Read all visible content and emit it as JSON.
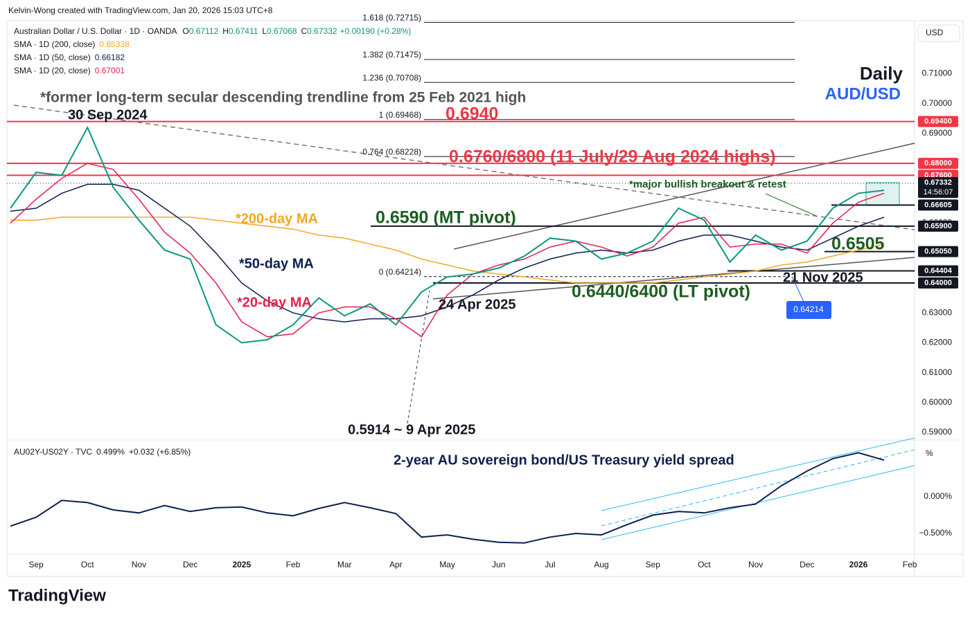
{
  "header": {
    "credit": "Kelvin-Wong created with TradingView.com, Jan 20, 2026 15:03 UTC+8",
    "currency": "USD",
    "brand": "TradingView",
    "ohlc": [
      {
        "key": "O",
        "value": "0.67112"
      },
      {
        "key": "H",
        "value": "0.67411"
      },
      {
        "key": "L",
        "value": "0.67068"
      },
      {
        "key": "C",
        "value": "0.67332"
      }
    ],
    "change": "+0.00190 (+0.28%)"
  },
  "chart_data": [
    {
      "type": "line",
      "title": "Daily",
      "subtitle": "AUD/USD",
      "categories": [
        null,
        "Sep",
        null,
        "Oct",
        null,
        "Nov",
        null,
        "Dec",
        null,
        "2025",
        null,
        "Feb",
        null,
        "Mar",
        null,
        "Apr",
        null,
        "May",
        null,
        "Jun",
        null,
        "Jul",
        null,
        "Aug",
        null,
        "Sep",
        null,
        "Oct",
        null,
        "Nov",
        null,
        "Dec",
        null,
        "2026",
        null,
        "Feb"
      ],
      "series": [
        {
          "name": "Australian Dollar / U.S. Dollar · 1D · OANDA",
          "color": "#089981",
          "values": [
            0.665,
            0.677,
            0.676,
            0.692,
            0.672,
            0.661,
            0.651,
            0.648,
            0.626,
            0.62,
            0.621,
            0.626,
            0.635,
            0.629,
            0.633,
            0.626,
            0.637,
            0.642,
            0.643,
            0.645,
            0.649,
            0.655,
            0.654,
            0.648,
            0.65,
            0.654,
            0.665,
            0.661,
            0.647,
            0.656,
            0.651,
            0.654,
            0.665,
            0.67,
            0.671,
            null
          ]
        },
        {
          "name": "SMA · 1D (200, close)",
          "legend_value": 0.65338,
          "color": "#f5a623",
          "values": [
            0.661,
            0.661,
            0.662,
            0.662,
            0.662,
            0.662,
            0.662,
            0.662,
            0.661,
            0.66,
            0.659,
            0.658,
            0.656,
            0.655,
            0.653,
            0.651,
            0.648,
            0.646,
            0.644,
            0.643,
            0.642,
            0.641,
            0.64,
            0.64,
            0.64,
            0.64,
            0.641,
            0.642,
            0.643,
            0.644,
            0.646,
            0.647,
            0.649,
            0.651,
            0.653,
            null
          ]
        },
        {
          "name": "SMA · 1D (50, close)",
          "legend_value": 0.66182,
          "color": "#0c1f4f",
          "values": [
            0.664,
            0.665,
            0.67,
            0.673,
            0.673,
            0.671,
            0.665,
            0.659,
            0.65,
            0.64,
            0.634,
            0.63,
            0.628,
            0.627,
            0.628,
            0.628,
            0.629,
            0.632,
            0.636,
            0.641,
            0.645,
            0.648,
            0.65,
            0.651,
            0.65,
            0.651,
            0.654,
            0.656,
            0.656,
            0.654,
            0.652,
            0.651,
            0.655,
            0.659,
            0.662,
            null
          ]
        },
        {
          "name": "SMA · 1D (20, close)",
          "legend_value": 0.67001,
          "color": "#e91e4c",
          "values": [
            0.66,
            0.668,
            0.675,
            0.68,
            0.678,
            0.668,
            0.657,
            0.65,
            0.64,
            0.627,
            0.622,
            0.623,
            0.63,
            0.632,
            0.632,
            0.628,
            0.622,
            0.636,
            0.643,
            0.646,
            0.648,
            0.652,
            0.654,
            0.652,
            0.649,
            0.652,
            0.66,
            0.662,
            0.652,
            0.653,
            0.653,
            0.65,
            0.66,
            0.667,
            0.67,
            null
          ]
        }
      ],
      "ylim": [
        0.5877,
        0.7277
      ],
      "yticks": [
        {
          "value": 0.59,
          "label": "0.59000"
        },
        {
          "value": 0.6,
          "label": "0.60000"
        },
        {
          "value": 0.61,
          "label": "0.61000"
        },
        {
          "value": 0.62,
          "label": "0.62000"
        },
        {
          "value": 0.63,
          "label": "0.63000"
        },
        {
          "value": 0.64,
          "label": "0.64000"
        },
        {
          "value": 0.65,
          "label": "0.65000"
        },
        {
          "value": 0.66,
          "label": "0.66000"
        },
        {
          "value": 0.67,
          "label": "0.67000"
        },
        {
          "value": 0.68,
          "label": "0.68000"
        },
        {
          "value": 0.69,
          "label": "0.69000"
        },
        {
          "value": 0.7,
          "label": "0.70000"
        },
        {
          "value": 0.71,
          "label": "0.71000"
        }
      ],
      "last": {
        "value": 0.67332,
        "label": "0.67332",
        "countdown": "14:56:07"
      },
      "levels": [
        {
          "value": 0.694,
          "label": "0.69400",
          "color": "#f23645"
        },
        {
          "value": 0.68,
          "label": "0.68000",
          "color": "#f23645"
        },
        {
          "value": 0.676,
          "label": "0.67600",
          "color": "#f23645"
        },
        {
          "value": 0.66605,
          "label": "0.66605",
          "color": "#131722"
        },
        {
          "value": 0.659,
          "label": "0.65900",
          "color": "#131722"
        },
        {
          "value": 0.6505,
          "label": "0.65050",
          "color": "#131722"
        },
        {
          "value": 0.64404,
          "label": "0.64404",
          "color": "#131722"
        },
        {
          "value": 0.64,
          "label": "0.64000",
          "color": "#131722"
        }
      ],
      "fib": [
        {
          "value": 0.72715,
          "label": "1.618 (0.72715)"
        },
        {
          "value": 0.71475,
          "label": "1.382 (0.71475)"
        },
        {
          "value": 0.70708,
          "label": "1.236 (0.70708)"
        },
        {
          "value": 0.69468,
          "label": "1 (0.69468)"
        },
        {
          "value": 0.68228,
          "label": "0.764 (0.68228)"
        },
        {
          "value": 0.64214,
          "label": "0 (0.64214)"
        }
      ],
      "marker": {
        "value": 0.64214,
        "label": "0.64214"
      },
      "annotations": [
        "*former long-term secular descending trendline from 25 Feb 2021 high",
        "30 Sep 2024",
        "0.6940",
        "0.6760/6800 (11 July/29 Aug 2024 highs)",
        "*major bullish breakout & retest",
        "0.6590 (MT pivot)",
        "*200-day MA",
        "*50-day MA",
        "*20-day MA",
        "0.6505",
        "21 Nov 2025",
        "24 Apr 2025",
        "0.6440/6400 (LT pivot)",
        "0.5914 ~ 9 Apr 2025"
      ]
    },
    {
      "type": "line",
      "title": "2-year AU sovereign bond/US Treasury yield spread",
      "axis_unit": "%",
      "series": [
        {
          "name": "AU02Y-US02Y · TVC",
          "legend_value": "0.499%",
          "change": "+0.032 (+6.85%)",
          "color": "#0c1f4f",
          "values": [
            -0.4,
            -0.28,
            -0.05,
            -0.08,
            -0.18,
            -0.22,
            -0.12,
            -0.2,
            -0.15,
            -0.14,
            -0.22,
            -0.26,
            -0.16,
            -0.08,
            -0.15,
            -0.23,
            -0.55,
            -0.52,
            -0.58,
            -0.62,
            -0.63,
            -0.55,
            -0.5,
            -0.52,
            -0.38,
            -0.25,
            -0.2,
            -0.22,
            -0.15,
            -0.1,
            0.15,
            0.35,
            0.52,
            0.6,
            0.499,
            null
          ]
        }
      ],
      "ylim": [
        -0.774,
        0.764
      ],
      "yticks": [
        {
          "value": 0,
          "label": "0.000%"
        },
        {
          "value": -0.5,
          "label": "−0.500%"
        }
      ]
    }
  ]
}
